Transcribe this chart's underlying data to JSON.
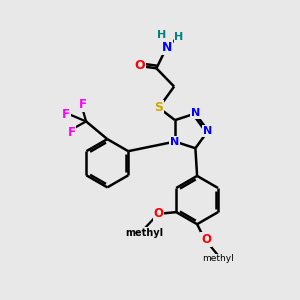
{
  "background_color": "#e8e8e8",
  "atom_colors": {
    "C": "#000000",
    "N": "#0000ff",
    "O": "#ff0000",
    "S": "#ccaa00",
    "F": "#ff00ff",
    "H": "#008080"
  },
  "bond_lw": 1.8,
  "fig_size": [
    3.0,
    3.0
  ],
  "dpi": 100
}
